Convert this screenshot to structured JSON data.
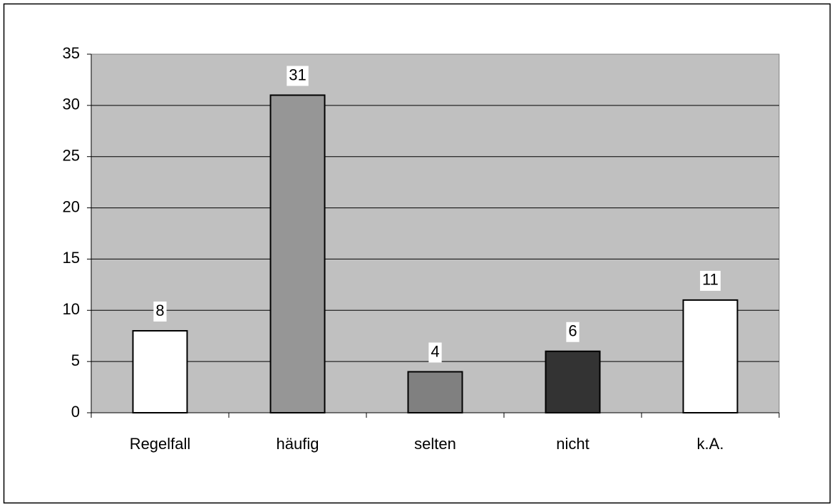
{
  "chart_data": {
    "type": "bar",
    "categories": [
      "Regelfall",
      "häufig",
      "selten",
      "nicht",
      "k.A."
    ],
    "values": [
      8,
      31,
      4,
      6,
      11
    ],
    "colors": [
      "#ffffff",
      "#969696",
      "#808080",
      "#333333",
      "#ffffff"
    ],
    "ylim": [
      0,
      35
    ],
    "yticks": [
      0,
      5,
      10,
      15,
      20,
      25,
      30,
      35
    ],
    "grid": true
  }
}
